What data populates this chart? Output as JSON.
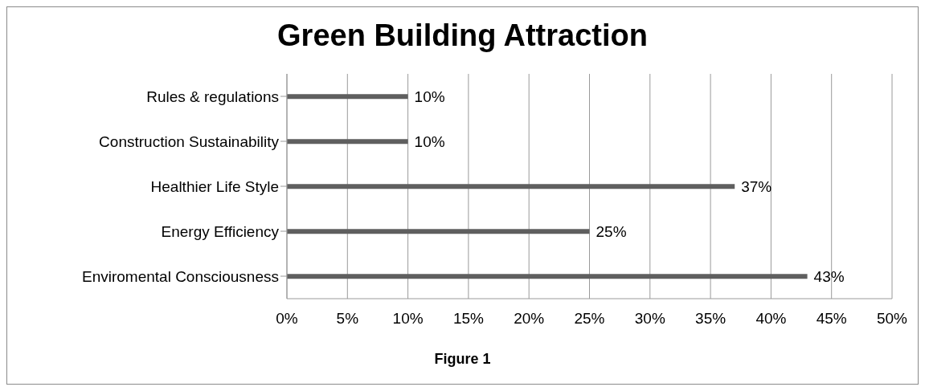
{
  "chart_data": {
    "type": "bar",
    "title": "Green Building Attraction",
    "orientation": "horizontal",
    "categories": [
      "Rules & regulations",
      "Construction Sustainability",
      "Healthier Life Style",
      "Energy Efficiency",
      "Enviromental Consciousness"
    ],
    "values": [
      10,
      10,
      37,
      25,
      43
    ],
    "color": "#5f5f5f",
    "value_labels": [
      "10%",
      "10%",
      "37%",
      "25%",
      "43%"
    ],
    "xlim": [
      0,
      50
    ],
    "xticks": [
      {
        "value": 0,
        "label": "0%"
      },
      {
        "value": 5,
        "label": "5%"
      },
      {
        "value": 10,
        "label": "10%"
      },
      {
        "value": 15,
        "label": "15%"
      },
      {
        "value": 20,
        "label": "20%"
      },
      {
        "value": 25,
        "label": "25%"
      },
      {
        "value": 30,
        "label": "30%"
      },
      {
        "value": 35,
        "label": "35%"
      },
      {
        "value": 40,
        "label": "40%"
      },
      {
        "value": 45,
        "label": "45%"
      },
      {
        "value": 50,
        "label": "50%"
      }
    ],
    "grid": "x",
    "legend": false,
    "annotations": [
      "Figure 1"
    ]
  }
}
